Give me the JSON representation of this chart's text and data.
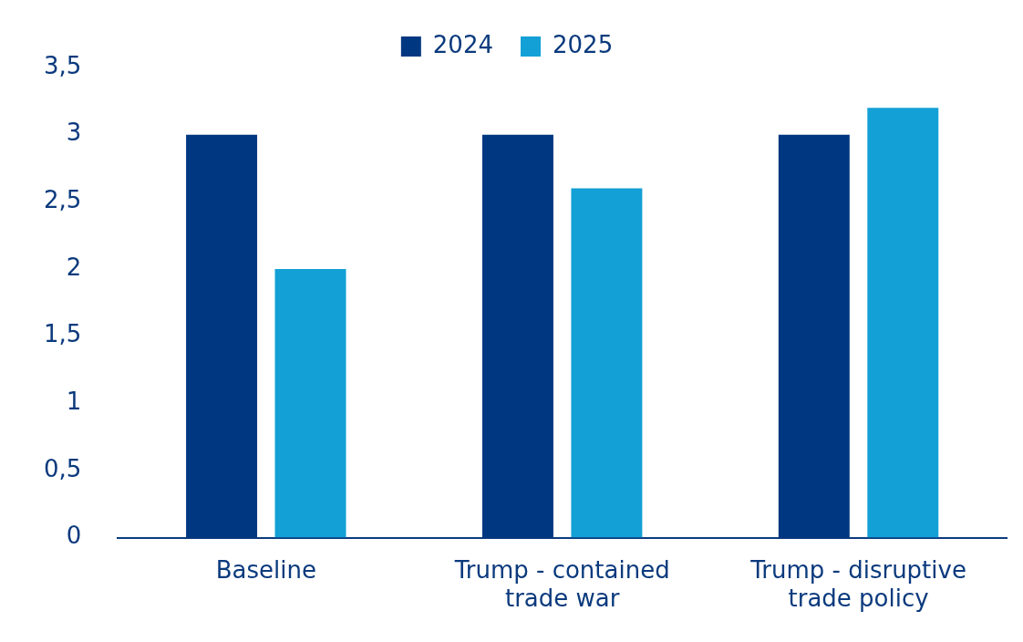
{
  "chart_data": {
    "type": "bar",
    "categories": [
      "Baseline",
      "Trump - contained trade war",
      "Trump - disruptive trade policy"
    ],
    "series": [
      {
        "name": "2024",
        "color": "#003781",
        "values": [
          3,
          3,
          3
        ]
      },
      {
        "name": "2025",
        "color": "#13a0d6",
        "values": [
          2,
          2.6,
          3.2
        ]
      }
    ],
    "ylim": [
      0,
      3.5
    ],
    "yticks": [
      0,
      {
        "value": 0.5,
        "label": "0,5"
      },
      1,
      {
        "value": 1.5,
        "label": "1,5"
      },
      2,
      {
        "value": 2.5,
        "label": "2,5"
      },
      3,
      {
        "value": 3.5,
        "label": "3,5"
      }
    ],
    "grid": false,
    "legend": "top"
  }
}
